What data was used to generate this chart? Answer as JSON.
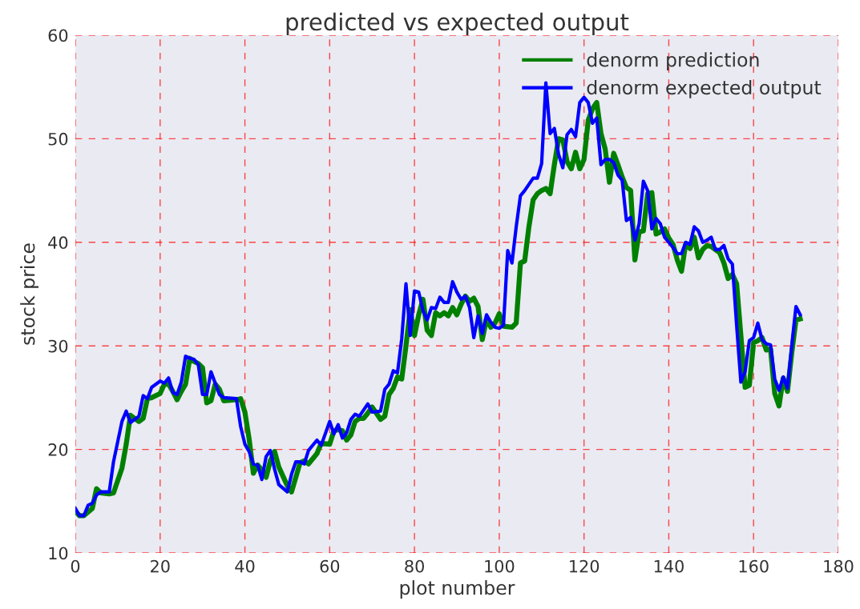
{
  "chart_data": {
    "type": "line",
    "title": "predicted vs expected output",
    "xlabel": "plot number",
    "ylabel": "stock price",
    "xlim": [
      0,
      180
    ],
    "ylim": [
      10,
      60
    ],
    "xticks": [
      0,
      20,
      40,
      60,
      80,
      100,
      120,
      140,
      160,
      180
    ],
    "yticks": [
      10,
      20,
      30,
      40,
      50,
      60
    ],
    "grid": true,
    "legend": "top right",
    "line_style": "solid",
    "marker": "none",
    "series": [
      {
        "name": "denorm prediction",
        "color": "#008000",
        "x": [
          0,
          1,
          2,
          4,
          5,
          6,
          8,
          9,
          11,
          12,
          13,
          15,
          16,
          17,
          18,
          20,
          21,
          22,
          23,
          24,
          25,
          26,
          27,
          28,
          29,
          30,
          31,
          32,
          33,
          34,
          35,
          38,
          39,
          40,
          41,
          42,
          43,
          44,
          45,
          46,
          47,
          48,
          50,
          51,
          52,
          53,
          54,
          55,
          57,
          58,
          60,
          61,
          62,
          63,
          64,
          65,
          66,
          67,
          68,
          69,
          70,
          72,
          73,
          74,
          75,
          76,
          77,
          78,
          79,
          80,
          81,
          82,
          83,
          84,
          85,
          86,
          87,
          88,
          89,
          90,
          91,
          92,
          93,
          94,
          95,
          96,
          97,
          98,
          99,
          100,
          101,
          103,
          104,
          105,
          106,
          107,
          108,
          109,
          110,
          111,
          112,
          113,
          114,
          115,
          116,
          117,
          118,
          119,
          120,
          121,
          122,
          123,
          124,
          125,
          126,
          127,
          128,
          129,
          130,
          131,
          132,
          133,
          134,
          135,
          136,
          137,
          138,
          139,
          140,
          141,
          142,
          143,
          144,
          145,
          146,
          147,
          148,
          149,
          150,
          151,
          152,
          153,
          154,
          155,
          156,
          158,
          159,
          160,
          161,
          162,
          163,
          164,
          165,
          166,
          167,
          168,
          169,
          170,
          171
        ],
        "values": [
          14.0,
          13.6,
          13.6,
          14.3,
          16.2,
          15.8,
          15.7,
          15.8,
          18.2,
          20.5,
          23.3,
          22.7,
          23.0,
          24.9,
          25.0,
          25.4,
          26.3,
          26.3,
          25.6,
          24.8,
          25.6,
          26.3,
          28.8,
          28.5,
          28.3,
          27.9,
          24.5,
          24.7,
          26.3,
          25.8,
          24.7,
          24.8,
          24.9,
          23.6,
          21.0,
          17.7,
          18.5,
          18.0,
          17.3,
          18.9,
          19.8,
          18.3,
          16.5,
          15.9,
          17.3,
          18.7,
          18.9,
          18.6,
          19.6,
          20.6,
          20.5,
          21.8,
          21.9,
          21.8,
          20.9,
          21.4,
          22.7,
          23.0,
          23.0,
          23.5,
          24.1,
          22.9,
          23.2,
          25.3,
          25.9,
          27.0,
          26.8,
          30.0,
          33.5,
          31.0,
          33.0,
          34.5,
          31.5,
          31.0,
          33.2,
          32.9,
          33.2,
          32.9,
          33.7,
          33.0,
          34.0,
          34.8,
          34.3,
          34.6,
          33.8,
          30.6,
          32.6,
          31.8,
          32.2,
          33.1,
          31.9,
          31.8,
          32.2,
          38.0,
          38.2,
          41.5,
          44.1,
          44.7,
          45.0,
          45.2,
          44.7,
          47.5,
          50.0,
          49.9,
          47.8,
          47.1,
          48.7,
          47.1,
          48.0,
          51.8,
          52.9,
          53.5,
          50.5,
          49.0,
          45.8,
          48.6,
          47.5,
          46.3,
          45.3,
          45.0,
          38.3,
          41.0,
          41.1,
          44.7,
          44.8,
          40.8,
          41.0,
          41.3,
          40.4,
          39.8,
          38.3,
          37.2,
          39.9,
          39.4,
          40.5,
          38.5,
          39.3,
          39.7,
          39.6,
          39.3,
          39.0,
          38.0,
          36.5,
          36.9,
          36.0,
          26.0,
          26.2,
          30.3,
          30.5,
          30.8,
          29.6,
          29.7,
          25.4,
          24.2,
          26.9,
          25.6,
          29.3,
          32.5,
          32.6
        ]
      },
      {
        "name": "denorm expected output",
        "color": "#0000ff",
        "x": [
          0,
          1,
          2,
          3,
          4,
          5,
          6,
          8,
          9,
          11,
          12,
          13,
          15,
          16,
          17,
          18,
          20,
          21,
          22,
          23,
          24,
          25,
          26,
          27,
          28,
          29,
          30,
          31,
          32,
          33,
          34,
          35,
          38,
          39,
          40,
          41,
          42,
          43,
          44,
          45,
          46,
          47,
          48,
          50,
          51,
          52,
          53,
          54,
          55,
          57,
          58,
          60,
          61,
          62,
          63,
          64,
          65,
          66,
          67,
          68,
          69,
          70,
          72,
          73,
          74,
          75,
          76,
          77,
          78,
          79,
          80,
          81,
          82,
          83,
          84,
          85,
          86,
          87,
          88,
          89,
          90,
          91,
          92,
          93,
          94,
          95,
          96,
          97,
          98,
          99,
          100,
          101,
          102,
          103,
          104,
          105,
          106,
          107,
          108,
          109,
          110,
          111,
          112,
          113,
          114,
          115,
          116,
          117,
          118,
          119,
          120,
          121,
          122,
          123,
          124,
          125,
          126,
          127,
          128,
          129,
          130,
          131,
          132,
          133,
          134,
          135,
          136,
          137,
          138,
          139,
          140,
          141,
          142,
          143,
          144,
          145,
          146,
          147,
          148,
          149,
          150,
          151,
          152,
          153,
          154,
          155,
          156,
          157,
          158,
          159,
          160,
          161,
          162,
          163,
          164,
          165,
          166,
          167,
          168,
          169,
          170,
          171
        ],
        "values": [
          14.3,
          13.6,
          13.6,
          14.6,
          14.8,
          15.6,
          15.9,
          15.9,
          18.8,
          22.7,
          23.7,
          22.6,
          23.2,
          25.2,
          24.9,
          26.0,
          26.6,
          26.4,
          26.9,
          25.5,
          25.3,
          26.5,
          29.0,
          28.8,
          28.7,
          28.2,
          25.3,
          25.3,
          27.5,
          26.4,
          25.3,
          25.0,
          24.9,
          22.2,
          20.5,
          19.8,
          18.6,
          18.5,
          17.1,
          19.3,
          19.9,
          18.1,
          16.6,
          15.9,
          17.6,
          18.8,
          18.8,
          18.6,
          19.9,
          20.9,
          20.4,
          22.7,
          21.5,
          22.4,
          21.1,
          21.6,
          22.9,
          23.4,
          23.2,
          23.8,
          24.4,
          23.6,
          23.7,
          25.8,
          26.3,
          27.6,
          27.4,
          30.7,
          36.0,
          31.0,
          35.3,
          35.2,
          33.4,
          32.5,
          33.7,
          33.6,
          34.7,
          34.2,
          34.2,
          36.2,
          35.2,
          34.5,
          34.8,
          33.7,
          30.8,
          32.9,
          31.2,
          33.0,
          32.3,
          31.8,
          31.7,
          32.0,
          39.2,
          38.0,
          41.5,
          44.5,
          45.0,
          45.6,
          46.2,
          46.2,
          47.6,
          55.4,
          50.5,
          51.0,
          48.5,
          47.2,
          50.4,
          50.9,
          50.2,
          53.5,
          54.0,
          53.5,
          51.5,
          52.0,
          47.5,
          48.0,
          48.0,
          47.7,
          46.5,
          46.0,
          42.1,
          42.4,
          40.2,
          41.8,
          45.9,
          45.0,
          41.3,
          42.3,
          41.8,
          40.5,
          40.0,
          39.5,
          38.9,
          38.9,
          40.0,
          39.8,
          41.5,
          41.1,
          40.0,
          40.2,
          40.5,
          39.3,
          39.3,
          39.7,
          38.4,
          37.9,
          32.0,
          26.5,
          27.5,
          30.5,
          30.8,
          32.2,
          30.6,
          30.2,
          30.1,
          26.8,
          25.7,
          27.0,
          25.9,
          30.0,
          33.8,
          33.0
        ]
      }
    ]
  }
}
